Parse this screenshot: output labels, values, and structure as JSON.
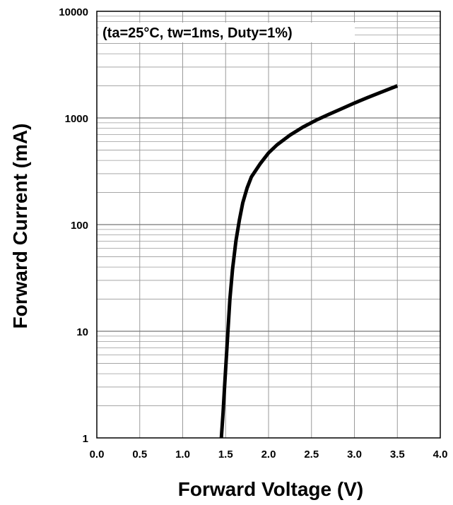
{
  "chart_data": {
    "type": "line",
    "title": "",
    "annotation": "(ta=25°C, tw=1ms, Duty=1%)",
    "xlabel": "Forward Voltage (V)",
    "ylabel": "Forward Current (mA)",
    "xlim": [
      0.0,
      4.0
    ],
    "ylim": [
      1,
      10000
    ],
    "y_scale": "log",
    "grid": true,
    "x_ticks": [
      "0.0",
      "0.5",
      "1.0",
      "1.5",
      "2.0",
      "2.5",
      "3.0",
      "3.5",
      "4.0"
    ],
    "y_ticks": [
      "1",
      "10",
      "100",
      "1000",
      "10000"
    ],
    "series": [
      {
        "x": [
          1.45,
          1.47,
          1.49,
          1.51,
          1.53,
          1.55,
          1.58,
          1.62,
          1.66,
          1.7,
          1.75,
          1.8,
          1.9,
          2.0,
          2.1,
          2.25,
          2.4,
          2.55,
          2.7,
          2.85,
          3.0,
          3.15,
          3.3,
          3.5
        ],
        "y": [
          1,
          1.7,
          3.2,
          6,
          11,
          20,
          38,
          70,
          110,
          160,
          220,
          280,
          370,
          470,
          560,
          690,
          820,
          950,
          1080,
          1220,
          1380,
          1550,
          1730,
          2000
        ]
      }
    ],
    "colors": {
      "line": "#000000",
      "grid": "#9a9a9a",
      "frame": "#000000",
      "background": "#ffffff"
    }
  }
}
